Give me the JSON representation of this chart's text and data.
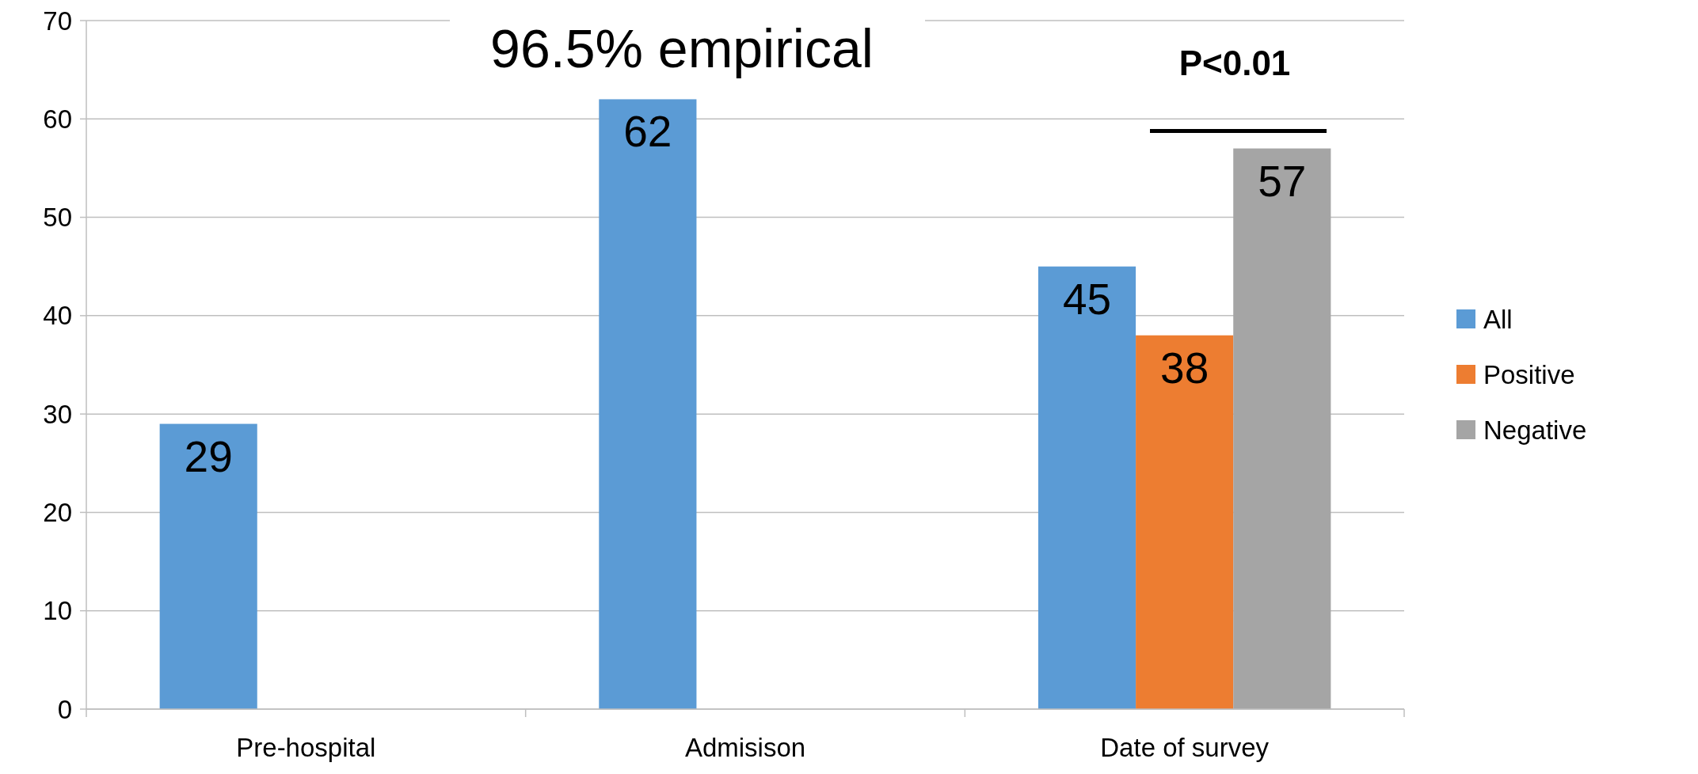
{
  "chart_data": {
    "type": "bar",
    "title": "96.5% empirical",
    "categories": [
      "Pre-hospital",
      "Admisison",
      "Date of survey"
    ],
    "series": [
      {
        "name": "All",
        "color": "#5b9bd5",
        "values": [
          29,
          62,
          45
        ]
      },
      {
        "name": "Positive",
        "color": "#ed7d31",
        "values": [
          null,
          null,
          38
        ]
      },
      {
        "name": "Negative",
        "color": "#a5a5a5",
        "values": [
          null,
          null,
          57
        ]
      }
    ],
    "ylim": [
      0,
      70
    ],
    "yticks": [
      0,
      10,
      20,
      30,
      40,
      50,
      60,
      70
    ],
    "grid": "y",
    "legend": "right",
    "data_labels": true,
    "annotations": [
      "P<0.01"
    ]
  }
}
